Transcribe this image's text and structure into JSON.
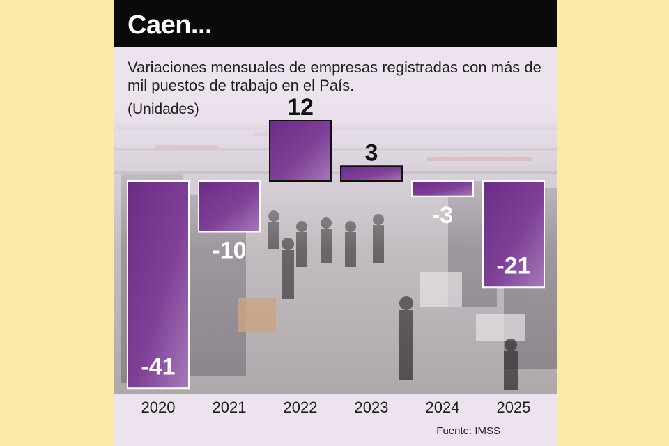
{
  "header": {
    "title": "Caen...",
    "subtitle": "Variaciones mensuales de empresas registradas con más de mil puestos de trabajo en el País.",
    "unit": "(Unidades)",
    "source": "Fuente: IMSS"
  },
  "colors": {
    "bar_fill": "#7b3a93",
    "bar_light": "#a77ab8",
    "header_bg": "#0a0a0a",
    "panel_bg": "#ece3ef",
    "page_bg": "#fbe9a8"
  },
  "chart_data": {
    "type": "bar",
    "categories": [
      "2020",
      "2021",
      "2022",
      "2023",
      "2024",
      "2025"
    ],
    "values": [
      -41,
      -10,
      12,
      3,
      -3,
      -21
    ],
    "labels": [
      "-41",
      "-10",
      "12",
      "3",
      "-3",
      "-21"
    ],
    "ylim": [
      -41,
      12
    ],
    "grid": false,
    "legend": "none"
  }
}
